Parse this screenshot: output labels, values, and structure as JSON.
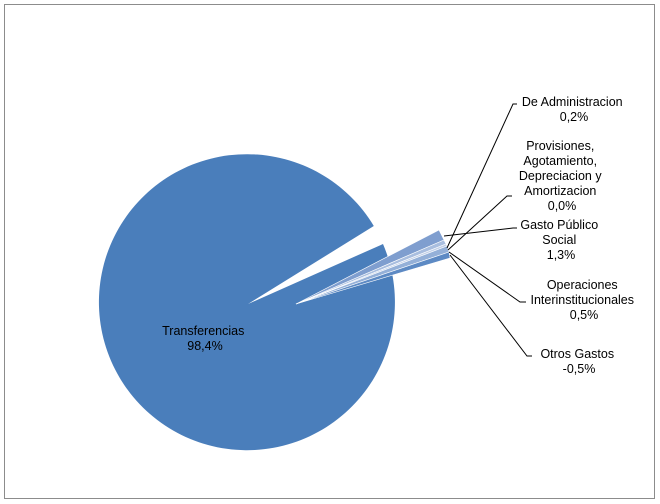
{
  "chart_data": {
    "type": "pie",
    "title": "",
    "slices": [
      {
        "name": "Transferencias",
        "value_label": "98,4%",
        "value": 98.4,
        "color": "#4a7ebb"
      },
      {
        "name": "Gasto Público Social",
        "value_label": "1,3%",
        "value": 1.3,
        "color": "#7f9ecf"
      },
      {
        "name": "De Administracion",
        "value_label": "0,2%",
        "value": 0.2,
        "color": "#a9bedf"
      },
      {
        "name": "Provisiones, Agotamiento, Depreciacion y Amortizacion",
        "value_label": "0,0%",
        "value": 0.0,
        "color": "#c3d1e8"
      },
      {
        "name": "Operaciones Interinstitucionales",
        "value_label": "0,5%",
        "value": 0.5,
        "color": "#94b0d8"
      },
      {
        "name": "Otros Gastos",
        "value_label": "-0,5%",
        "value": -0.5,
        "color": "#5d8ac4"
      }
    ],
    "labels": {
      "transferencias": {
        "lines": [
          "Transferencias",
          "98,4%"
        ]
      },
      "administracion": {
        "lines": [
          "De Administracion",
          "0,2%"
        ]
      },
      "provisiones": {
        "lines": [
          "Provisiones,",
          "Agotamiento,",
          "Depreciacion y",
          "Amortizacion",
          "0,0%"
        ]
      },
      "gasto_publico": {
        "lines": [
          "Gasto Público",
          "Social",
          "1,3%"
        ]
      },
      "operaciones": {
        "lines": [
          "Operaciones",
          "Interinstitucionales",
          "0,5%"
        ]
      },
      "otros": {
        "lines": [
          "Otros Gastos",
          "-0,5%"
        ]
      }
    },
    "legend": "none"
  }
}
